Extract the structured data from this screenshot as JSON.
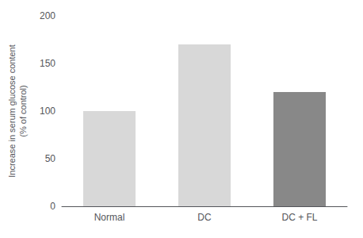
{
  "chart_data": {
    "type": "bar",
    "categories": [
      "Normal",
      "DC",
      "DC + FL"
    ],
    "values": [
      100,
      170,
      120
    ],
    "colors": [
      "#d8d8d8",
      "#d8d8d8",
      "#888888"
    ],
    "ylabel": "Increase in serum glucose content\n(% of control)",
    "ylim": [
      0,
      200
    ],
    "yticks": [
      0,
      50,
      100,
      150,
      200
    ],
    "grid": false
  }
}
